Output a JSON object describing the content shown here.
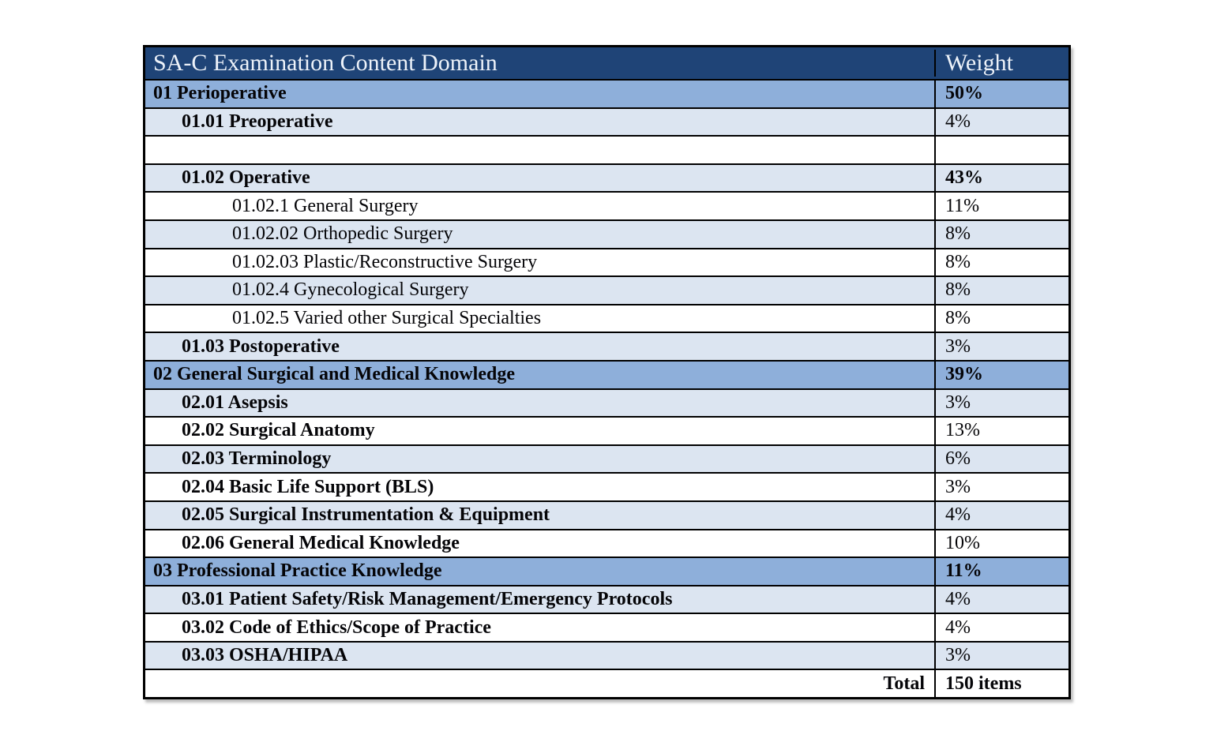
{
  "page": {
    "background": "#FFFFFF"
  },
  "colors": {
    "header_bg": "#1F4477",
    "header_text": "#EDF2F9",
    "section_row_bg": "#8EAFDA",
    "sub_row_bg": "#DCE5F1",
    "plain_row_bg": "#FFFFFF",
    "border": "#000000",
    "body_text": "#050508"
  },
  "table": {
    "header": {
      "domain": "SA-C Examination Content Domain",
      "weight": "Weight"
    },
    "rows": [
      {
        "label": "01 Perioperative",
        "weight": "50%",
        "level": 0,
        "bg": "section",
        "label_bold": true,
        "weight_bold": true,
        "align": "left"
      },
      {
        "label": "01.01 Preoperative",
        "weight": "4%",
        "level": 1,
        "bg": "light",
        "label_bold": true,
        "weight_bold": false,
        "align": "left"
      },
      {
        "label": "",
        "weight": "",
        "level": 0,
        "bg": "white",
        "label_bold": false,
        "weight_bold": false,
        "align": "left"
      },
      {
        "label": "01.02 Operative",
        "weight": "43%",
        "level": 1,
        "bg": "light",
        "label_bold": true,
        "weight_bold": true,
        "align": "left"
      },
      {
        "label": "01.02.1 General Surgery",
        "weight": "11%",
        "level": 2,
        "bg": "white",
        "label_bold": false,
        "weight_bold": false,
        "align": "left"
      },
      {
        "label": "01.02.02 Orthopedic Surgery",
        "weight": "8%",
        "level": 2,
        "bg": "light",
        "label_bold": false,
        "weight_bold": false,
        "align": "left"
      },
      {
        "label": "01.02.03 Plastic/Reconstructive Surgery",
        "weight": "8%",
        "level": 2,
        "bg": "white",
        "label_bold": false,
        "weight_bold": false,
        "align": "left"
      },
      {
        "label": "01.02.4 Gynecological Surgery",
        "weight": "8%",
        "level": 2,
        "bg": "light",
        "label_bold": false,
        "weight_bold": false,
        "align": "left"
      },
      {
        "label": "01.02.5 Varied other Surgical Specialties",
        "weight": "8%",
        "level": 2,
        "bg": "white",
        "label_bold": false,
        "weight_bold": false,
        "align": "left"
      },
      {
        "label": "01.03 Postoperative",
        "weight": "3%",
        "level": 1,
        "bg": "light",
        "label_bold": true,
        "weight_bold": false,
        "align": "left"
      },
      {
        "label": "02 General Surgical and Medical Knowledge",
        "weight": "39%",
        "level": 0,
        "bg": "section",
        "label_bold": true,
        "weight_bold": true,
        "align": "left"
      },
      {
        "label": "02.01 Asepsis",
        "weight": "3%",
        "level": 1,
        "bg": "light",
        "label_bold": true,
        "weight_bold": false,
        "align": "left"
      },
      {
        "label": "02.02 Surgical Anatomy",
        "weight": "13%",
        "level": 1,
        "bg": "white",
        "label_bold": true,
        "weight_bold": false,
        "align": "left"
      },
      {
        "label": "02.03 Terminology",
        "weight": "6%",
        "level": 1,
        "bg": "light",
        "label_bold": true,
        "weight_bold": false,
        "align": "left"
      },
      {
        "label": "02.04 Basic Life Support (BLS)",
        "weight": "3%",
        "level": 1,
        "bg": "white",
        "label_bold": true,
        "weight_bold": false,
        "align": "left"
      },
      {
        "label": "02.05 Surgical Instrumentation & Equipment",
        "weight": "4%",
        "level": 1,
        "bg": "light",
        "label_bold": true,
        "weight_bold": false,
        "align": "left"
      },
      {
        "label": "02.06 General Medical Knowledge",
        "weight": "10%",
        "level": 1,
        "bg": "white",
        "label_bold": true,
        "weight_bold": false,
        "align": "left"
      },
      {
        "label": "03 Professional Practice Knowledge",
        "weight": "11%",
        "level": 0,
        "bg": "section",
        "label_bold": true,
        "weight_bold": true,
        "align": "left"
      },
      {
        "label": "03.01 Patient Safety/Risk Management/Emergency Protocols",
        "weight": "4%",
        "level": 1,
        "bg": "light",
        "label_bold": true,
        "weight_bold": false,
        "align": "left"
      },
      {
        "label": "03.02 Code of Ethics/Scope of Practice",
        "weight": "4%",
        "level": 1,
        "bg": "white",
        "label_bold": true,
        "weight_bold": false,
        "align": "left"
      },
      {
        "label": "03.03 OSHA/HIPAA",
        "weight": "3%",
        "level": 1,
        "bg": "light",
        "label_bold": true,
        "weight_bold": false,
        "align": "left"
      },
      {
        "label": "Total",
        "weight": "150 items",
        "level": 0,
        "bg": "white",
        "label_bold": true,
        "weight_bold": true,
        "align": "right"
      }
    ]
  }
}
